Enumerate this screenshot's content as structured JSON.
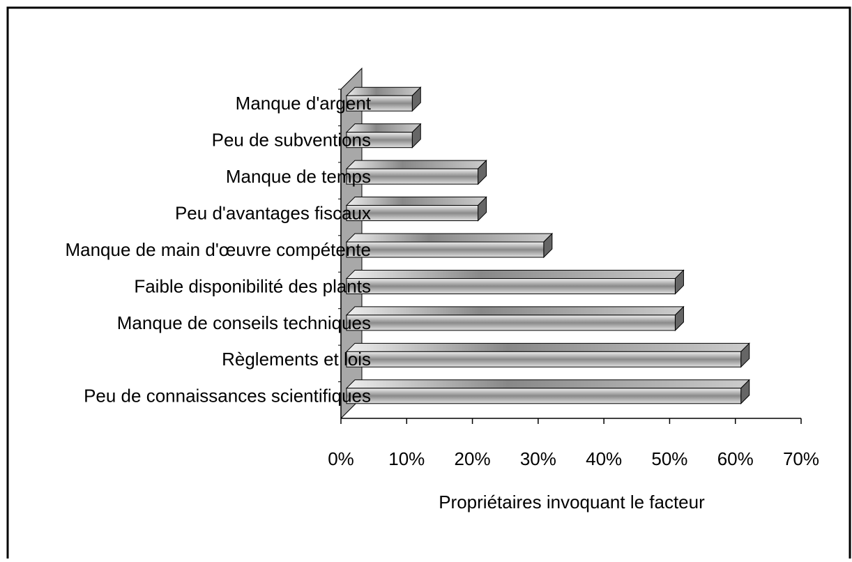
{
  "chart_data": {
    "type": "bar",
    "orientation": "horizontal",
    "x_axis_label": "Propriétaires invoquant le facteur",
    "categories": [
      "Manque d'argent",
      "Peu de subventions",
      "Manque de temps",
      "Peu d'avantages fiscaux",
      "Manque de main d'œuvre compétente",
      "Faible disponibilité des plants",
      "Manque de conseils techniques",
      "Règlements et lois",
      "Peu de connaissances scientifiques"
    ],
    "values": [
      10,
      10,
      20,
      20,
      30,
      50,
      50,
      60,
      60
    ],
    "color": "#a0a0a0",
    "xlim": [
      0,
      70
    ],
    "xticks": [
      {
        "value": 0,
        "label": "0%"
      },
      {
        "value": 10,
        "label": "10%"
      },
      {
        "value": 20,
        "label": "20%"
      },
      {
        "value": 30,
        "label": "30%"
      },
      {
        "value": 40,
        "label": "40%"
      },
      {
        "value": 50,
        "label": "50%"
      },
      {
        "value": 60,
        "label": "60%"
      },
      {
        "value": 70,
        "label": "70%"
      }
    ],
    "grid": false
  }
}
